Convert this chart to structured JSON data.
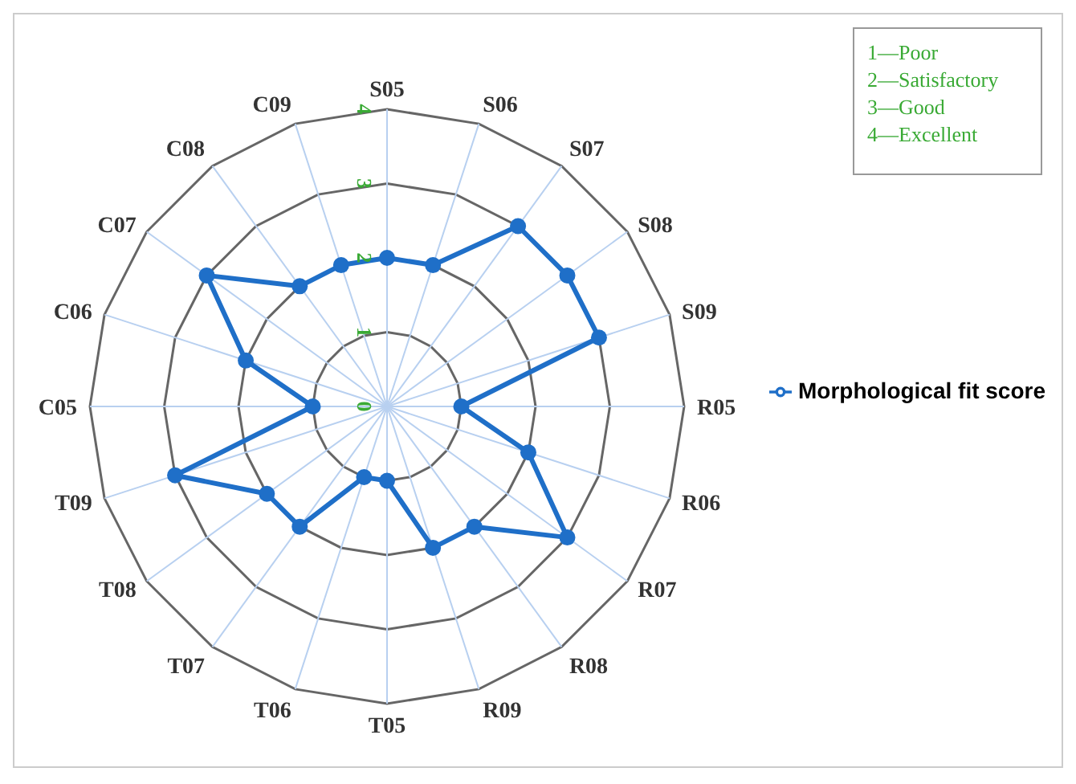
{
  "chart_data": {
    "type": "radar",
    "categories": [
      "S05",
      "S06",
      "S07",
      "S08",
      "S09",
      "R05",
      "R06",
      "R07",
      "R08",
      "R09",
      "T05",
      "T06",
      "T07",
      "T08",
      "T09",
      "C05",
      "C06",
      "C07",
      "C08",
      "C09"
    ],
    "series": [
      {
        "name": "Morphological fit score",
        "color": "#1f6fc8",
        "values": [
          2,
          2,
          3,
          3,
          3,
          1,
          2,
          3,
          2,
          2,
          1,
          1,
          2,
          2,
          3,
          1,
          2,
          3,
          2,
          2
        ]
      }
    ],
    "ylim": [
      0,
      4
    ],
    "yticks": [
      0,
      1,
      2,
      3,
      4
    ],
    "grid": true,
    "legend": "right",
    "marker": "circle",
    "annotations": [
      "1—Poor",
      "2—Satisfactory",
      "3—Good",
      "4—Excellent"
    ]
  }
}
